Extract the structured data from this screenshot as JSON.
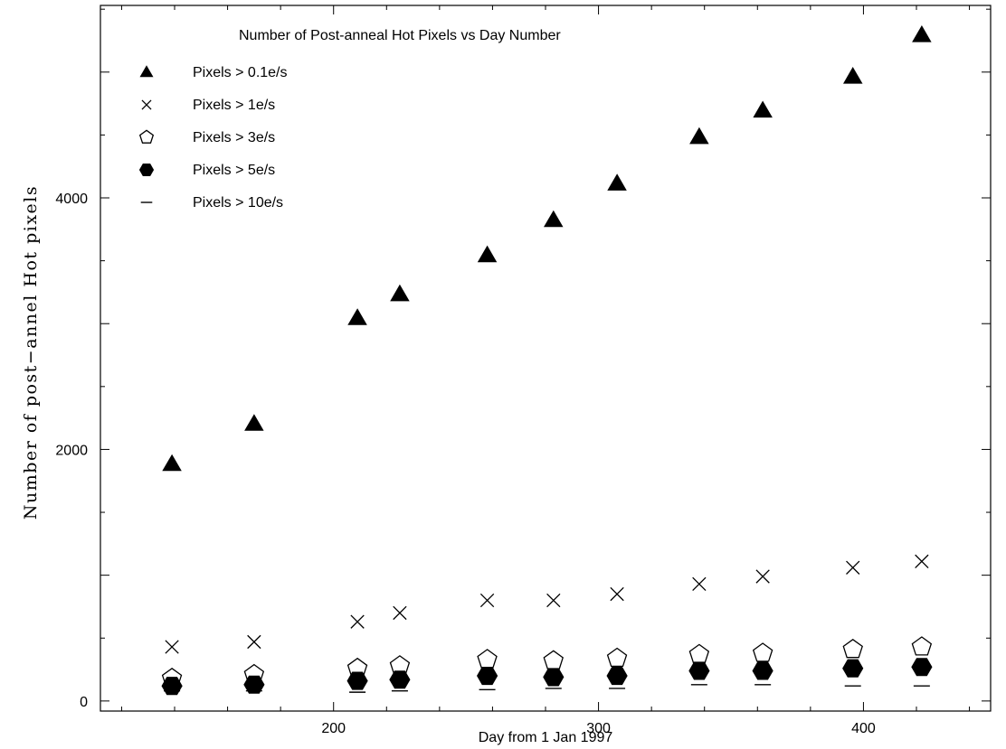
{
  "chart_data": {
    "type": "scatter",
    "title": "Number of Post-anneal Hot Pixels vs Day Number",
    "xlabel": "Day from 1 Jan 1997",
    "ylabel": "Number of post−annel Hot pixels",
    "xlim": [
      112,
      448
    ],
    "ylim": [
      -80,
      5530
    ],
    "x_ticks": [
      200,
      300,
      400
    ],
    "y_ticks": [
      0,
      2000,
      4000
    ],
    "grid": false,
    "legend_position": "top-left",
    "x": [
      139,
      170,
      209,
      225,
      258,
      283,
      307,
      338,
      362,
      396,
      422
    ],
    "series": [
      {
        "name": "Pixels > 0.1e/s",
        "marker": "triangle-filled",
        "values": [
          1880,
          2200,
          3040,
          3230,
          3540,
          3820,
          4110,
          4480,
          4690,
          4960,
          5290
        ]
      },
      {
        "name": "Pixels > 1e/s",
        "marker": "cross",
        "values": [
          430,
          470,
          630,
          700,
          800,
          800,
          850,
          930,
          990,
          1060,
          1110
        ]
      },
      {
        "name": "Pixels > 3e/s",
        "marker": "pentagon-open",
        "values": [
          180,
          210,
          260,
          280,
          330,
          320,
          340,
          370,
          380,
          410,
          430
        ]
      },
      {
        "name": "Pixels > 5e/s",
        "marker": "hexagon-filled",
        "values": [
          120,
          130,
          160,
          170,
          200,
          190,
          200,
          240,
          240,
          260,
          270
        ]
      },
      {
        "name": "Pixels > 10e/s",
        "marker": "dash",
        "values": [
          80,
          80,
          70,
          80,
          90,
          100,
          100,
          130,
          130,
          120,
          120
        ]
      }
    ]
  }
}
